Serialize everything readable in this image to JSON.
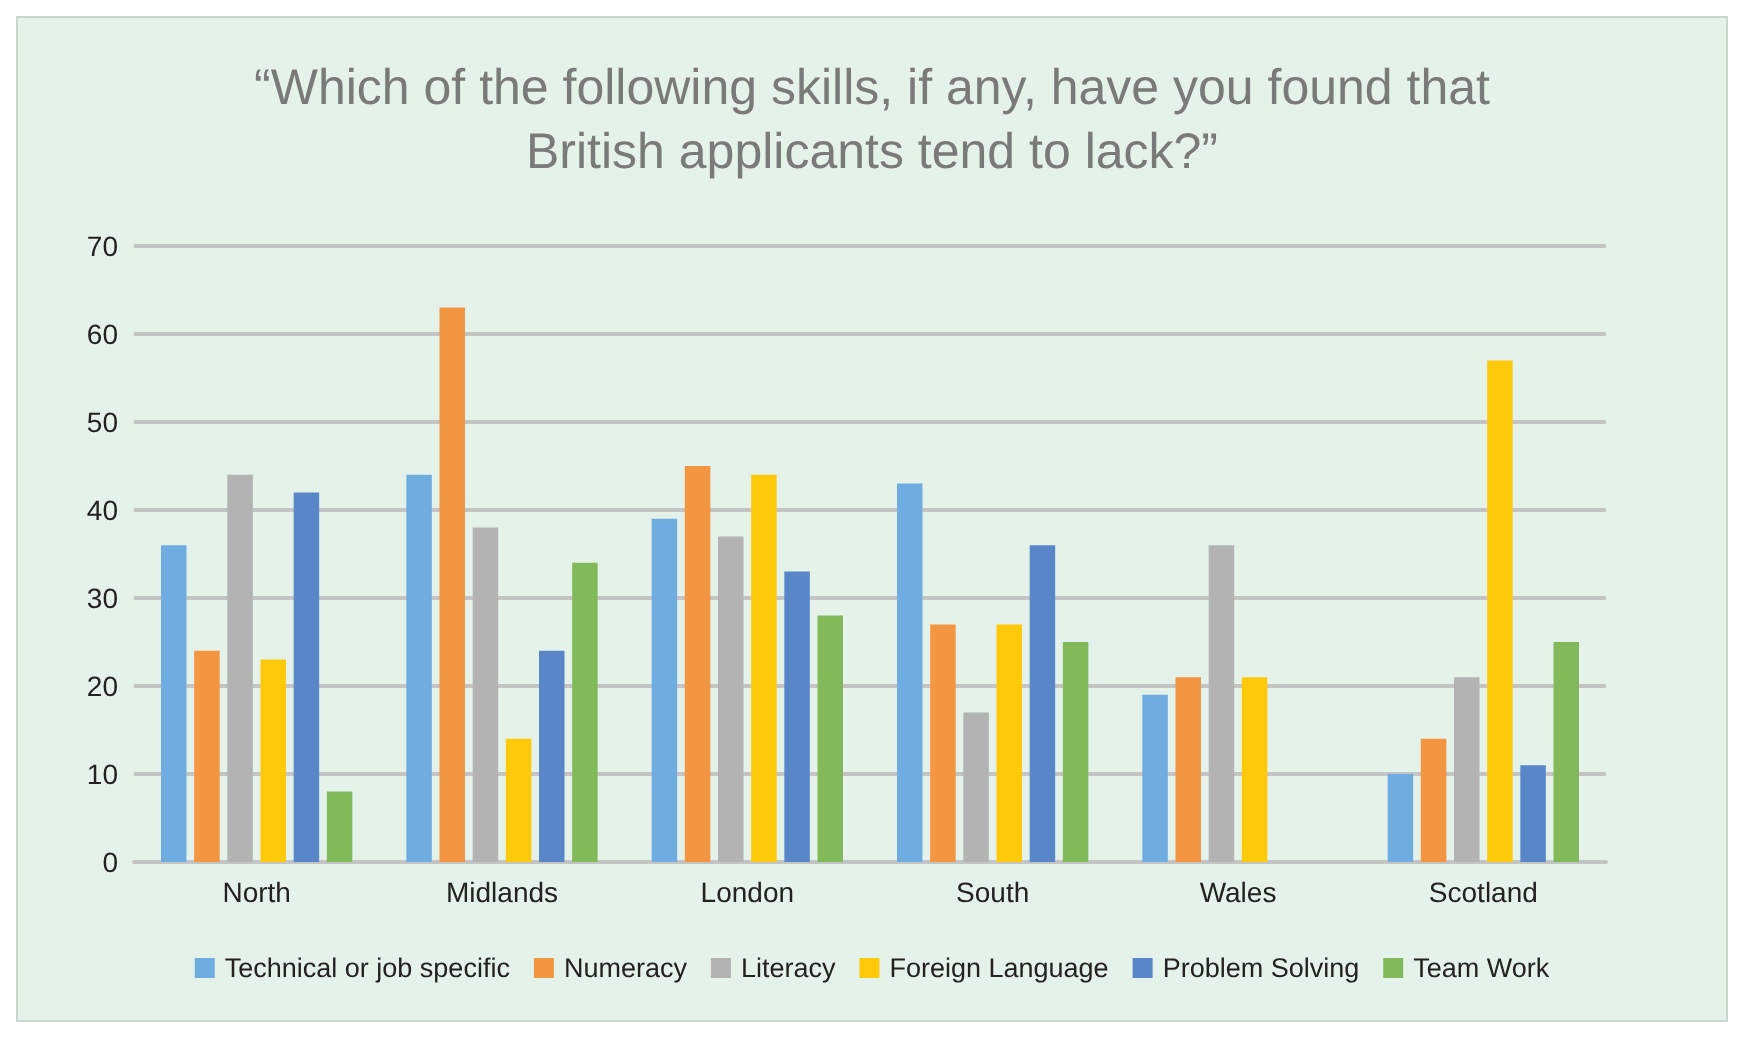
{
  "chart_data": {
    "type": "bar",
    "title": "“Which of the following skills, if any, have you found that\nBritish applicants tend to lack?”",
    "categories": [
      "North",
      "Midlands",
      "London",
      "South",
      "Wales",
      "Scotland"
    ],
    "series": [
      {
        "name": "Technical or job specific",
        "color": "#6fade0",
        "values": [
          36,
          44,
          39,
          43,
          19,
          10
        ]
      },
      {
        "name": "Numeracy",
        "color": "#f39642",
        "values": [
          24,
          63,
          45,
          27,
          21,
          14
        ]
      },
      {
        "name": "Literacy",
        "color": "#b3b3b3",
        "values": [
          44,
          38,
          37,
          17,
          36,
          21
        ]
      },
      {
        "name": "Foreign Language",
        "color": "#fdca0b",
        "values": [
          23,
          14,
          44,
          27,
          21,
          57
        ]
      },
      {
        "name": "Problem Solving",
        "color": "#5886c8",
        "values": [
          42,
          24,
          33,
          36,
          null,
          11
        ]
      },
      {
        "name": "Team Work",
        "color": "#82b95a",
        "values": [
          8,
          34,
          28,
          25,
          null,
          25
        ]
      }
    ],
    "ylim": [
      0,
      70
    ],
    "yticks": [
      0,
      10,
      20,
      30,
      40,
      50,
      60,
      70
    ],
    "grid": "y",
    "legend": "bottom"
  }
}
